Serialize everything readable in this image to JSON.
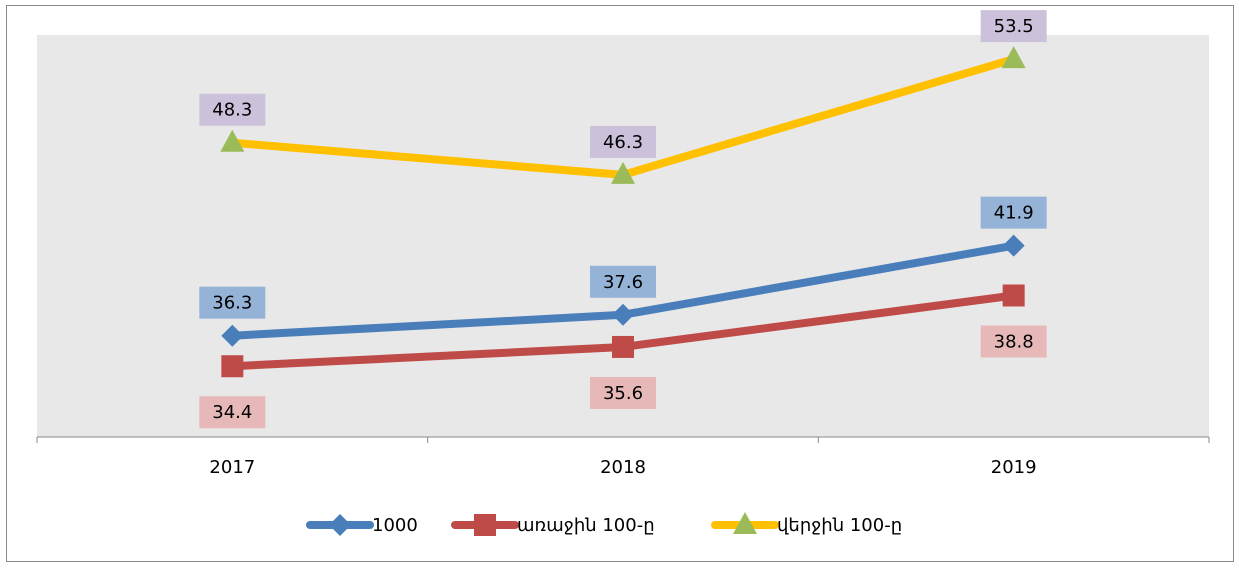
{
  "chart_data": {
    "type": "line",
    "categories": [
      "2017",
      "2018",
      "2019"
    ],
    "series": [
      {
        "name": "1000",
        "color": "#4a7ebb",
        "marker": "diamond",
        "marker_color": "#4a7ebb",
        "label_color": "#95b3d7",
        "label_position": "above",
        "values": [
          36.3,
          37.6,
          41.9
        ]
      },
      {
        "name": "առաջին 100-ը",
        "color": "#be4b48",
        "marker": "square",
        "marker_color": "#be4b48",
        "label_color": "#e6b9b8",
        "label_position": "below",
        "values": [
          34.4,
          35.6,
          38.8
        ]
      },
      {
        "name": "վերջին 100-ը",
        "color": "#ffc000",
        "marker": "triangle",
        "marker_color": "#9bbb59",
        "label_color": "#ccc1da",
        "label_position": "above",
        "values": [
          48.3,
          46.3,
          53.5
        ]
      }
    ],
    "ylim": [
      30,
      55
    ],
    "legend": "bottom"
  }
}
